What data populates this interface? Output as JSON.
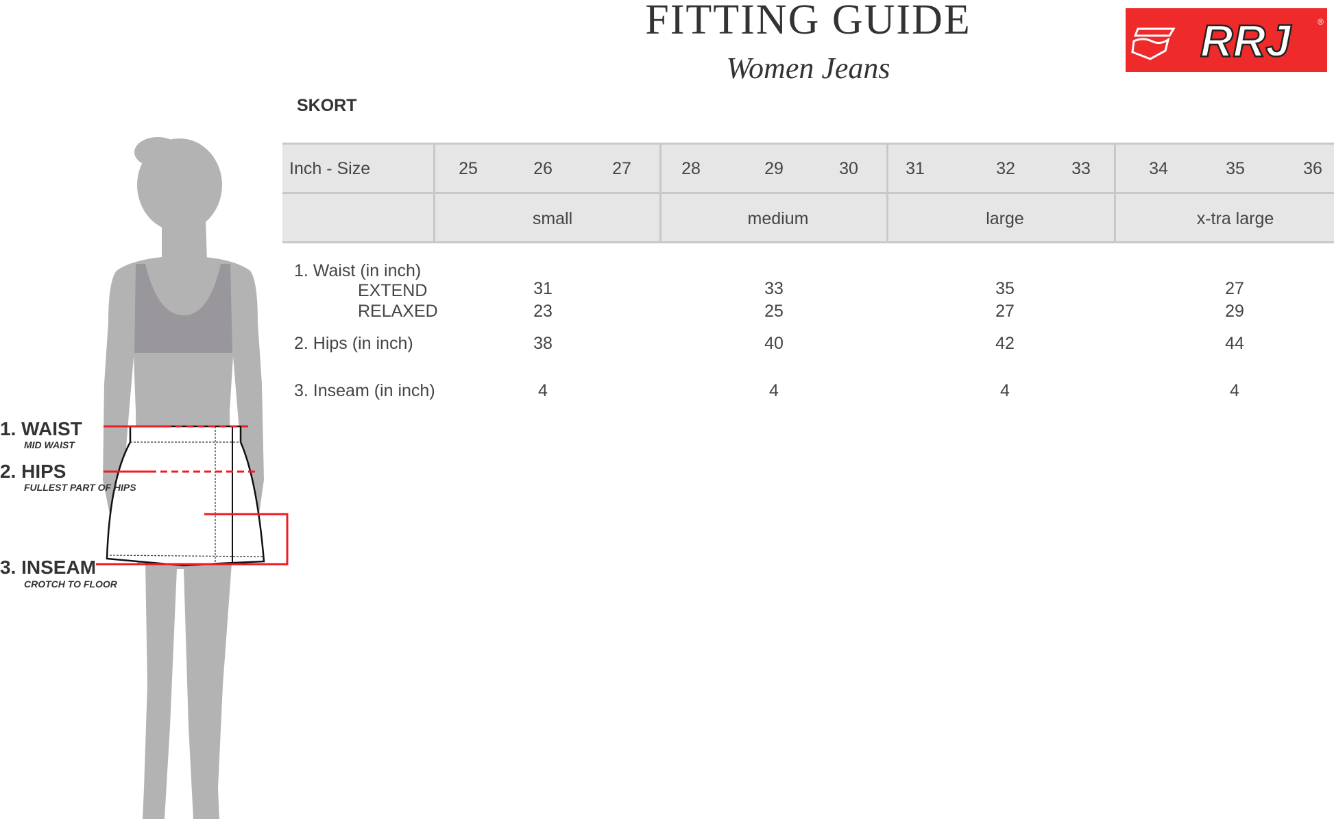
{
  "header": {
    "title": "FITTING GUIDE",
    "subtitle": "Women Jeans",
    "logo_text": "RRJ",
    "brand_color": "#ee2a2a"
  },
  "section": "SKORT",
  "table": {
    "size_label": "Inch - Size",
    "sizes": [
      "25",
      "26",
      "27",
      "28",
      "29",
      "30",
      "31",
      "32",
      "33",
      "34",
      "35",
      "36"
    ],
    "groups": [
      "small",
      "medium",
      "large",
      "x-tra large"
    ],
    "rows": {
      "waist_label": "1. Waist (in inch)",
      "extend_label": "EXTEND",
      "relaxed_label": "RELAXED",
      "hips_label": "2. Hips (in inch)",
      "inseam_label": "3. Inseam (in inch)",
      "extend": [
        "31",
        "33",
        "35",
        "27"
      ],
      "relaxed": [
        "23",
        "25",
        "27",
        "29"
      ],
      "hips": [
        "38",
        "40",
        "42",
        "44"
      ],
      "inseam": [
        "4",
        "4",
        "4",
        "4"
      ]
    }
  },
  "measure": {
    "waist": "1. WAIST",
    "waist_sub": "MID WAIST",
    "hips": "2. HIPS",
    "hips_sub": "FULLEST PART OF HIPS",
    "inseam": "3. INSEAM",
    "inseam_sub": "CROTCH TO FLOOR",
    "line_color": "#ee1c24"
  }
}
